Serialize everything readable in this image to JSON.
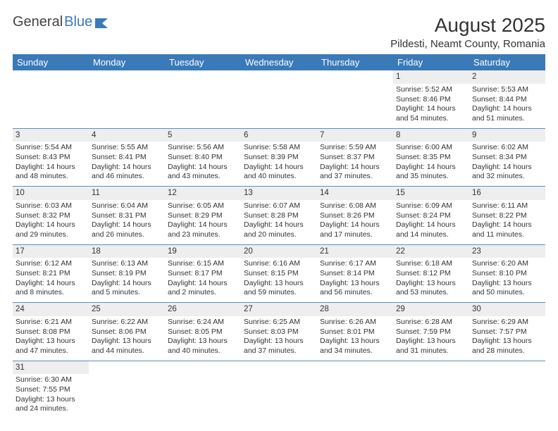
{
  "logo": {
    "text1": "General",
    "text2": "Blue"
  },
  "title": "August 2025",
  "location": "Pildesti, Neamt County, Romania",
  "headers": [
    "Sunday",
    "Monday",
    "Tuesday",
    "Wednesday",
    "Thursday",
    "Friday",
    "Saturday"
  ],
  "colors": {
    "header_bg": "#3a7ab8",
    "header_text": "#ffffff",
    "daynum_bg": "#eeeeee",
    "border": "#5a8fc2",
    "text": "#333333",
    "logo_blue": "#3a7ab8"
  },
  "weeks": [
    [
      null,
      null,
      null,
      null,
      null,
      {
        "n": "1",
        "sunrise": "Sunrise: 5:52 AM",
        "sunset": "Sunset: 8:46 PM",
        "d1": "Daylight: 14 hours",
        "d2": "and 54 minutes."
      },
      {
        "n": "2",
        "sunrise": "Sunrise: 5:53 AM",
        "sunset": "Sunset: 8:44 PM",
        "d1": "Daylight: 14 hours",
        "d2": "and 51 minutes."
      }
    ],
    [
      {
        "n": "3",
        "sunrise": "Sunrise: 5:54 AM",
        "sunset": "Sunset: 8:43 PM",
        "d1": "Daylight: 14 hours",
        "d2": "and 48 minutes."
      },
      {
        "n": "4",
        "sunrise": "Sunrise: 5:55 AM",
        "sunset": "Sunset: 8:41 PM",
        "d1": "Daylight: 14 hours",
        "d2": "and 46 minutes."
      },
      {
        "n": "5",
        "sunrise": "Sunrise: 5:56 AM",
        "sunset": "Sunset: 8:40 PM",
        "d1": "Daylight: 14 hours",
        "d2": "and 43 minutes."
      },
      {
        "n": "6",
        "sunrise": "Sunrise: 5:58 AM",
        "sunset": "Sunset: 8:39 PM",
        "d1": "Daylight: 14 hours",
        "d2": "and 40 minutes."
      },
      {
        "n": "7",
        "sunrise": "Sunrise: 5:59 AM",
        "sunset": "Sunset: 8:37 PM",
        "d1": "Daylight: 14 hours",
        "d2": "and 37 minutes."
      },
      {
        "n": "8",
        "sunrise": "Sunrise: 6:00 AM",
        "sunset": "Sunset: 8:35 PM",
        "d1": "Daylight: 14 hours",
        "d2": "and 35 minutes."
      },
      {
        "n": "9",
        "sunrise": "Sunrise: 6:02 AM",
        "sunset": "Sunset: 8:34 PM",
        "d1": "Daylight: 14 hours",
        "d2": "and 32 minutes."
      }
    ],
    [
      {
        "n": "10",
        "sunrise": "Sunrise: 6:03 AM",
        "sunset": "Sunset: 8:32 PM",
        "d1": "Daylight: 14 hours",
        "d2": "and 29 minutes."
      },
      {
        "n": "11",
        "sunrise": "Sunrise: 6:04 AM",
        "sunset": "Sunset: 8:31 PM",
        "d1": "Daylight: 14 hours",
        "d2": "and 26 minutes."
      },
      {
        "n": "12",
        "sunrise": "Sunrise: 6:05 AM",
        "sunset": "Sunset: 8:29 PM",
        "d1": "Daylight: 14 hours",
        "d2": "and 23 minutes."
      },
      {
        "n": "13",
        "sunrise": "Sunrise: 6:07 AM",
        "sunset": "Sunset: 8:28 PM",
        "d1": "Daylight: 14 hours",
        "d2": "and 20 minutes."
      },
      {
        "n": "14",
        "sunrise": "Sunrise: 6:08 AM",
        "sunset": "Sunset: 8:26 PM",
        "d1": "Daylight: 14 hours",
        "d2": "and 17 minutes."
      },
      {
        "n": "15",
        "sunrise": "Sunrise: 6:09 AM",
        "sunset": "Sunset: 8:24 PM",
        "d1": "Daylight: 14 hours",
        "d2": "and 14 minutes."
      },
      {
        "n": "16",
        "sunrise": "Sunrise: 6:11 AM",
        "sunset": "Sunset: 8:22 PM",
        "d1": "Daylight: 14 hours",
        "d2": "and 11 minutes."
      }
    ],
    [
      {
        "n": "17",
        "sunrise": "Sunrise: 6:12 AM",
        "sunset": "Sunset: 8:21 PM",
        "d1": "Daylight: 14 hours",
        "d2": "and 8 minutes."
      },
      {
        "n": "18",
        "sunrise": "Sunrise: 6:13 AM",
        "sunset": "Sunset: 8:19 PM",
        "d1": "Daylight: 14 hours",
        "d2": "and 5 minutes."
      },
      {
        "n": "19",
        "sunrise": "Sunrise: 6:15 AM",
        "sunset": "Sunset: 8:17 PM",
        "d1": "Daylight: 14 hours",
        "d2": "and 2 minutes."
      },
      {
        "n": "20",
        "sunrise": "Sunrise: 6:16 AM",
        "sunset": "Sunset: 8:15 PM",
        "d1": "Daylight: 13 hours",
        "d2": "and 59 minutes."
      },
      {
        "n": "21",
        "sunrise": "Sunrise: 6:17 AM",
        "sunset": "Sunset: 8:14 PM",
        "d1": "Daylight: 13 hours",
        "d2": "and 56 minutes."
      },
      {
        "n": "22",
        "sunrise": "Sunrise: 6:18 AM",
        "sunset": "Sunset: 8:12 PM",
        "d1": "Daylight: 13 hours",
        "d2": "and 53 minutes."
      },
      {
        "n": "23",
        "sunrise": "Sunrise: 6:20 AM",
        "sunset": "Sunset: 8:10 PM",
        "d1": "Daylight: 13 hours",
        "d2": "and 50 minutes."
      }
    ],
    [
      {
        "n": "24",
        "sunrise": "Sunrise: 6:21 AM",
        "sunset": "Sunset: 8:08 PM",
        "d1": "Daylight: 13 hours",
        "d2": "and 47 minutes."
      },
      {
        "n": "25",
        "sunrise": "Sunrise: 6:22 AM",
        "sunset": "Sunset: 8:06 PM",
        "d1": "Daylight: 13 hours",
        "d2": "and 44 minutes."
      },
      {
        "n": "26",
        "sunrise": "Sunrise: 6:24 AM",
        "sunset": "Sunset: 8:05 PM",
        "d1": "Daylight: 13 hours",
        "d2": "and 40 minutes."
      },
      {
        "n": "27",
        "sunrise": "Sunrise: 6:25 AM",
        "sunset": "Sunset: 8:03 PM",
        "d1": "Daylight: 13 hours",
        "d2": "and 37 minutes."
      },
      {
        "n": "28",
        "sunrise": "Sunrise: 6:26 AM",
        "sunset": "Sunset: 8:01 PM",
        "d1": "Daylight: 13 hours",
        "d2": "and 34 minutes."
      },
      {
        "n": "29",
        "sunrise": "Sunrise: 6:28 AM",
        "sunset": "Sunset: 7:59 PM",
        "d1": "Daylight: 13 hours",
        "d2": "and 31 minutes."
      },
      {
        "n": "30",
        "sunrise": "Sunrise: 6:29 AM",
        "sunset": "Sunset: 7:57 PM",
        "d1": "Daylight: 13 hours",
        "d2": "and 28 minutes."
      }
    ],
    [
      {
        "n": "31",
        "sunrise": "Sunrise: 6:30 AM",
        "sunset": "Sunset: 7:55 PM",
        "d1": "Daylight: 13 hours",
        "d2": "and 24 minutes."
      },
      null,
      null,
      null,
      null,
      null,
      null
    ]
  ]
}
